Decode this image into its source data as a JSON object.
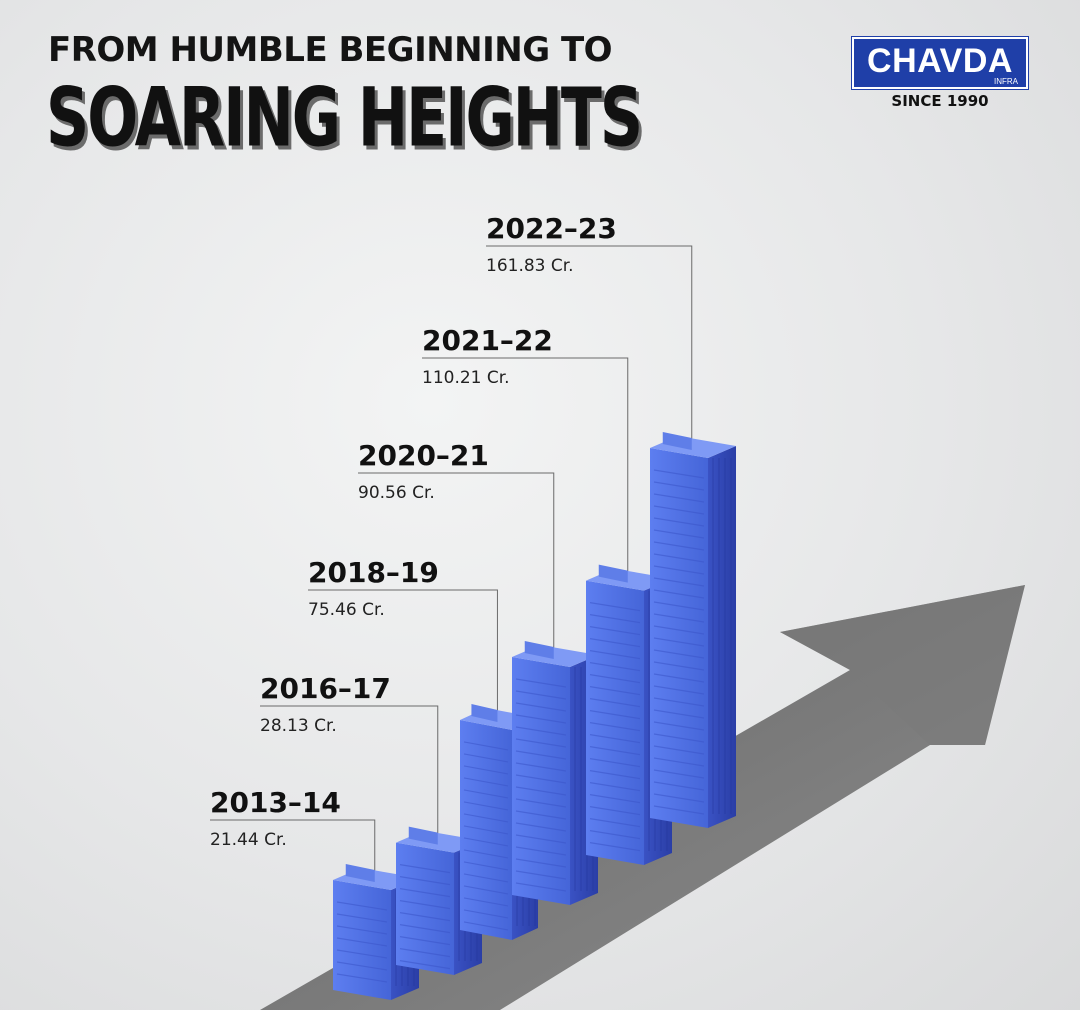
{
  "header": {
    "title_line1": "FROM HUMBLE BEGINNING TO",
    "title_line2": "SOARING HEIGHTS"
  },
  "brand": {
    "name": "CHAVDA",
    "sub": "INFRA",
    "tagline": "SINCE 1990",
    "color": "#1f3fa8"
  },
  "chart_data": {
    "type": "bar",
    "title": "FROM HUMBLE BEGINNING TO SOARING HEIGHTS",
    "categories": [
      "2013-14",
      "2016-17",
      "2018-19",
      "2020-21",
      "2021-22",
      "2022-23"
    ],
    "values": [
      21.44,
      28.13,
      75.46,
      90.56,
      110.21,
      161.83
    ],
    "value_labels": [
      "21.44 Cr.",
      "28.13 Cr.",
      "75.46 Cr.",
      "90.56 Cr.",
      "110.21 Cr.",
      "161.83 Cr."
    ],
    "bar_style": "isometric buildings",
    "colors": {
      "building": "#4f6fe0",
      "building_dark": "#3046b8",
      "arrow": "#6f6f6f"
    },
    "grid": false
  }
}
